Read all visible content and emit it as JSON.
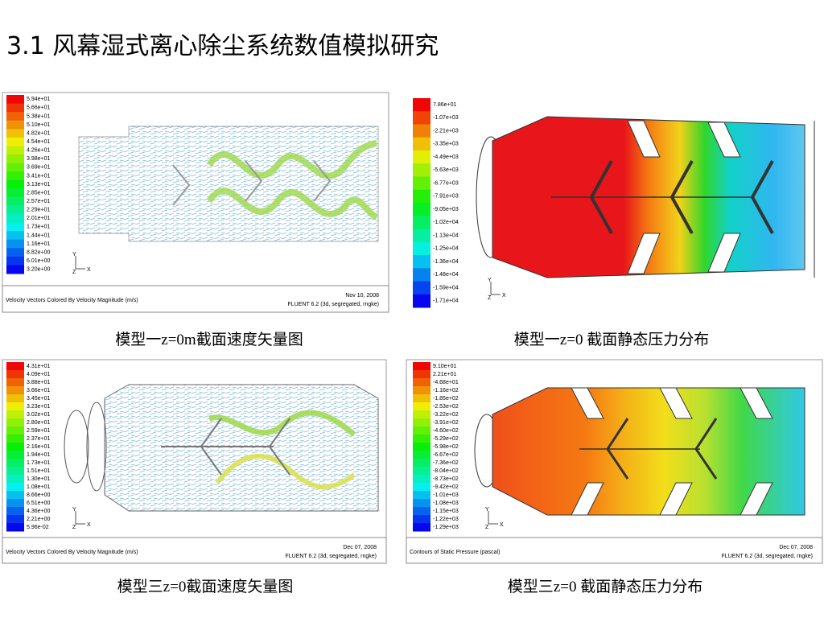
{
  "title": "3.1 风幕湿式离心除尘系统数值模拟研究",
  "panels": [
    {
      "legend": [
        "5.94e+01",
        "5.66e+01",
        "5.38e+01",
        "5.10e+01",
        "4.82e+01",
        "4.54e+01",
        "4.26e+01",
        "3.98e+01",
        "3.69e+01",
        "3.41e+01",
        "3.13e+01",
        "2.85e+01",
        "2.57e+01",
        "2.29e+01",
        "2.01e+01",
        "1.73e+01",
        "1.44e+01",
        "1.16e+01",
        "8.82e+00",
        "6.01e+00",
        "3.20e+00"
      ],
      "axes": {
        "y": "Y",
        "z": "Z",
        "x": "X"
      },
      "footer": {
        "description": "Velocity Vectors Colored By Velocity Magnitude (m/s)",
        "date": "Nov 10, 2008",
        "solver": "FLUENT 6.2 (3d, segregated, rngke)"
      },
      "caption": "模型一z=0m截面速度矢量图"
    },
    {
      "legend": [
        "7.86e+01",
        "-1.07e+03",
        "-2.21e+03",
        "-3.35e+03",
        "-4.49e+03",
        "-5.63e+03",
        "-6.77e+03",
        "-7.91e+03",
        "-9.05e+03",
        "-1.02e+04",
        "-1.13e+04",
        "-1.25e+04",
        "-1.36e+04",
        "-1.48e+04",
        "-1.59e+04",
        "-1.71e+04"
      ],
      "axes": {
        "y": "Y",
        "z": "Z",
        "x": "X"
      },
      "caption": "模型一z=0 截面静态压力分布"
    },
    {
      "legend": [
        "4.31e+01",
        "4.09e+01",
        "3.88e+01",
        "3.66e+01",
        "3.45e+01",
        "3.23e+01",
        "3.02e+01",
        "2.80e+01",
        "2.59e+01",
        "2.37e+01",
        "2.16e+01",
        "1.94e+01",
        "1.73e+01",
        "1.51e+01",
        "1.30e+01",
        "1.08e+01",
        "8.66e+00",
        "6.51e+00",
        "4.36e+00",
        "2.21e+00",
        "5.96e-02"
      ],
      "axes": {
        "y": "Y",
        "z": "Z",
        "x": "X"
      },
      "footer": {
        "description": "Velocity Vectors Colored By Velocity Magnitude (m/s)",
        "date": "Dec 07, 2008",
        "solver": "FLUENT 6.2 (3d, segregated, rngke)"
      },
      "caption": "模型三z=0截面速度矢量图"
    },
    {
      "legend": [
        "9.10e+01",
        "2.21e+01",
        "-4.68e+01",
        "-1.16e+02",
        "-1.85e+02",
        "-2.53e+02",
        "-3.22e+02",
        "-3.91e+02",
        "-4.60e+02",
        "-5.29e+02",
        "-5.98e+02",
        "-6.67e+02",
        "-7.36e+02",
        "-8.04e+02",
        "-8.73e+02",
        "-9.42e+02",
        "-1.01e+03",
        "-1.08e+03",
        "-1.15e+03",
        "-1.22e+03",
        "-1.29e+03"
      ],
      "axes": {
        "y": "Y",
        "z": "Z",
        "x": "X"
      },
      "footer": {
        "description": "Contours of Static Pressure (pascal)",
        "date": "Dec 07, 2008",
        "solver": "FLUENT 6.2 (3d, segregated, rngke)"
      },
      "caption": "模型三z=0 截面静态压力分布"
    }
  ]
}
